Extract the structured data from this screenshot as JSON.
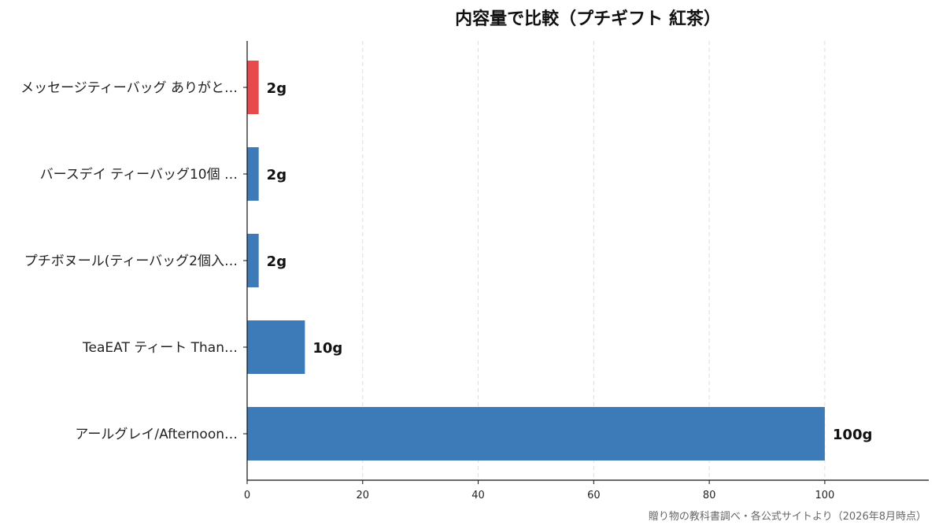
{
  "chart_data": {
    "type": "bar",
    "orientation": "horizontal",
    "title": "内容量で比較（プチギフト 紅茶）",
    "xlabel": "",
    "ylabel": "",
    "categories": [
      "メッセージティーバッグ ありがと…",
      "バースデイ ティーバッグ10個 …",
      "プチボヌール(ティーバッグ2個入…",
      "TeaEAT ティート Than…",
      "アールグレイ/Afternoon…"
    ],
    "values": [
      2,
      2,
      2,
      10,
      100
    ],
    "value_labels": [
      "2g",
      "2g",
      "2g",
      "10g",
      "100g"
    ],
    "highlight_index": 0,
    "xlim": [
      0,
      118
    ],
    "xticks": [
      0,
      20,
      40,
      60,
      80,
      100
    ],
    "grid": "vertical dashed",
    "colors": {
      "bar": "#3d7ab8",
      "highlight": "#e8494a",
      "grid": "#dddddd",
      "axis": "#111111"
    }
  },
  "source_note": "贈り物の教科書調べ・各公式サイトより（2026年8月時点）"
}
